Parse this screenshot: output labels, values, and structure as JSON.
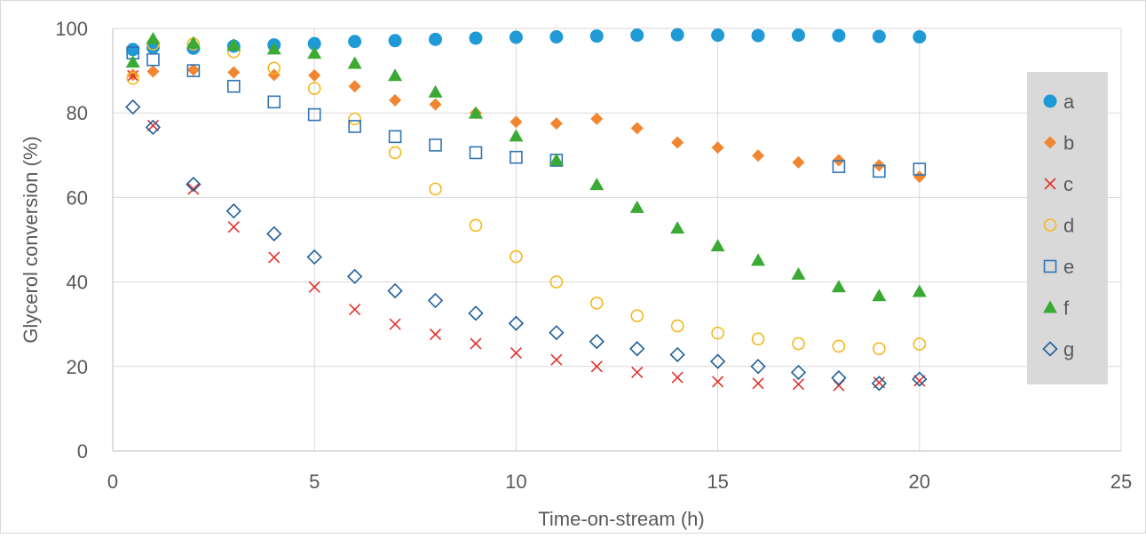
{
  "chart_data": {
    "type": "scatter",
    "title": "",
    "xlabel": "Time-on-stream (h)",
    "ylabel": "Glycerol conversion (%)",
    "xlim": [
      0,
      25
    ],
    "ylim": [
      0,
      100
    ],
    "xticks": [
      0,
      5,
      10,
      15,
      20,
      25
    ],
    "yticks": [
      0,
      20,
      40,
      60,
      80,
      100
    ],
    "grid": true,
    "legend_position": "right",
    "series": [
      {
        "name": "a",
        "marker": "circle",
        "filled": true,
        "color": "#1f9ad6",
        "x": [
          0.5,
          1,
          2,
          3,
          4,
          5,
          6,
          7,
          8,
          9,
          10,
          11,
          12,
          13,
          14,
          15,
          16,
          17,
          18,
          19,
          20
        ],
        "y": [
          95,
          95.5,
          95.3,
          95.8,
          96.1,
          96.4,
          96.9,
          97.1,
          97.4,
          97.7,
          97.9,
          98,
          98.2,
          98.4,
          98.5,
          98.4,
          98.3,
          98.4,
          98.3,
          98.1,
          98
        ]
      },
      {
        "name": "b",
        "marker": "diamond",
        "filled": true,
        "color": "#f28530",
        "x": [
          0.5,
          1,
          2,
          3,
          4,
          5,
          6,
          7,
          8,
          9,
          10,
          11,
          12,
          13,
          14,
          15,
          16,
          17,
          18,
          19,
          20
        ],
        "y": [
          89,
          89.8,
          90.2,
          89.6,
          89,
          88.9,
          86.3,
          83,
          82,
          80,
          77.9,
          77.5,
          78.6,
          76.4,
          73,
          71.8,
          69.9,
          68.3,
          68.8,
          67.6,
          64.9
        ]
      },
      {
        "name": "c",
        "marker": "x",
        "filled": false,
        "color": "#e0312c",
        "x": [
          0.5,
          1,
          2,
          3,
          4,
          5,
          6,
          7,
          8,
          9,
          10,
          11,
          12,
          13,
          14,
          15,
          16,
          17,
          18,
          19,
          20
        ],
        "y": [
          88.8,
          77,
          62,
          53,
          45.8,
          38.8,
          33.5,
          30,
          27.6,
          25.4,
          23.2,
          21.6,
          20,
          18.6,
          17.4,
          16.4,
          16,
          15.8,
          15.5,
          16.2,
          16.6
        ]
      },
      {
        "name": "d",
        "marker": "circle",
        "filled": false,
        "color": "#f4b81c",
        "x": [
          0.5,
          1,
          2,
          3,
          4,
          5,
          6,
          7,
          8,
          9,
          10,
          11,
          12,
          13,
          14,
          15,
          16,
          17,
          18,
          19,
          20
        ],
        "y": [
          88.2,
          96.3,
          96.3,
          94.5,
          90.6,
          85.8,
          78.6,
          70.6,
          62,
          53.4,
          46,
          40,
          35,
          32,
          29.6,
          27.9,
          26.5,
          25.4,
          24.8,
          24.2,
          25.3
        ]
      },
      {
        "name": "e",
        "marker": "square",
        "filled": false,
        "color": "#2f74b5",
        "x": [
          0.5,
          1,
          2,
          3,
          4,
          5,
          6,
          7,
          8,
          9,
          10,
          11,
          18,
          19,
          20
        ],
        "y": [
          94.2,
          92.6,
          90,
          86.3,
          82.6,
          79.6,
          76.8,
          74.4,
          72.4,
          70.6,
          69.5,
          68.8,
          67.3,
          66.2,
          66.7
        ]
      },
      {
        "name": "f",
        "marker": "triangle",
        "filled": true,
        "color": "#3aaa35",
        "x": [
          0.5,
          1,
          2,
          3,
          4,
          5,
          6,
          7,
          8,
          9,
          10,
          11,
          12,
          13,
          14,
          15,
          16,
          17,
          18,
          19,
          20
        ],
        "y": [
          92,
          97.5,
          96.5,
          96,
          95.1,
          94.1,
          91.7,
          88.8,
          84.9,
          79.9,
          74.5,
          68.8,
          63,
          57.6,
          52.7,
          48.5,
          45.1,
          41.8,
          38.8,
          36.7,
          37.7
        ]
      },
      {
        "name": "g",
        "marker": "diamond",
        "filled": false,
        "color": "#1f5f9b",
        "x": [
          0.5,
          1,
          2,
          3,
          4,
          5,
          6,
          7,
          8,
          9,
          10,
          11,
          12,
          13,
          14,
          15,
          16,
          17,
          18,
          19,
          20
        ],
        "y": [
          81.4,
          76.6,
          63.1,
          56.8,
          51.4,
          45.9,
          41.3,
          37.9,
          35.6,
          32.6,
          30.2,
          28,
          25.9,
          24.2,
          22.8,
          21.2,
          20,
          18.6,
          17.3,
          16,
          17
        ]
      }
    ]
  }
}
